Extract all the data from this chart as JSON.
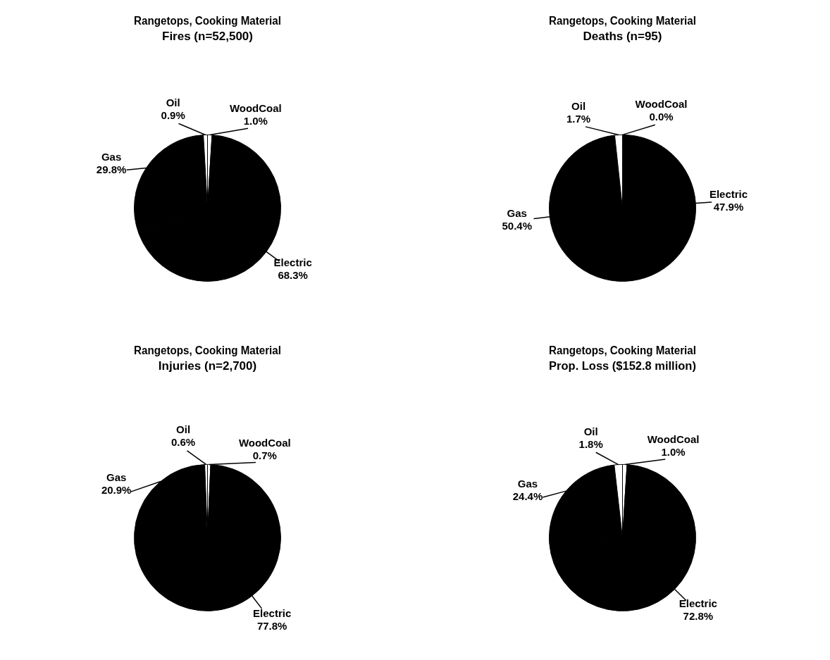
{
  "chart_data": [
    {
      "type": "pie",
      "title": "Rangetops, Cooking Material",
      "subtitle": "Fires (n=52,500)",
      "categories": [
        "WoodCoal",
        "Electric",
        "Gas",
        "Oil"
      ],
      "values": [
        1.0,
        68.3,
        29.8,
        0.9
      ],
      "value_labels": [
        "1.0%",
        "68.3%",
        "29.8%",
        "0.9%"
      ],
      "colors": [
        "#ffffff",
        "#000000",
        "#000000",
        "#ffffff"
      ]
    },
    {
      "type": "pie",
      "title": "Rangetops, Cooking Material",
      "subtitle": "Deaths (n=95)",
      "categories": [
        "WoodCoal",
        "Electric",
        "Gas",
        "Oil"
      ],
      "values": [
        0.0,
        47.9,
        50.4,
        1.7
      ],
      "value_labels": [
        "0.0%",
        "47.9%",
        "50.4%",
        "1.7%"
      ],
      "colors": [
        "#ffffff",
        "#000000",
        "#000000",
        "#ffffff"
      ]
    },
    {
      "type": "pie",
      "title": "Rangetops, Cooking Material",
      "subtitle": "Injuries (n=2,700)",
      "categories": [
        "WoodCoal",
        "Electric",
        "Gas",
        "Oil"
      ],
      "values": [
        0.7,
        77.8,
        20.9,
        0.6
      ],
      "value_labels": [
        "0.7%",
        "77.8%",
        "20.9%",
        "0.6%"
      ],
      "colors": [
        "#ffffff",
        "#000000",
        "#000000",
        "#ffffff"
      ]
    },
    {
      "type": "pie",
      "title": "Rangetops, Cooking Material",
      "subtitle": "Prop. Loss ($152.8 million)",
      "categories": [
        "WoodCoal",
        "Electric",
        "Gas",
        "Oil"
      ],
      "values": [
        1.0,
        72.8,
        24.4,
        1.8
      ],
      "value_labels": [
        "1.0%",
        "72.8%",
        "24.4%",
        "1.8%"
      ],
      "colors": [
        "#ffffff",
        "#000000",
        "#000000",
        "#ffffff"
      ]
    }
  ]
}
